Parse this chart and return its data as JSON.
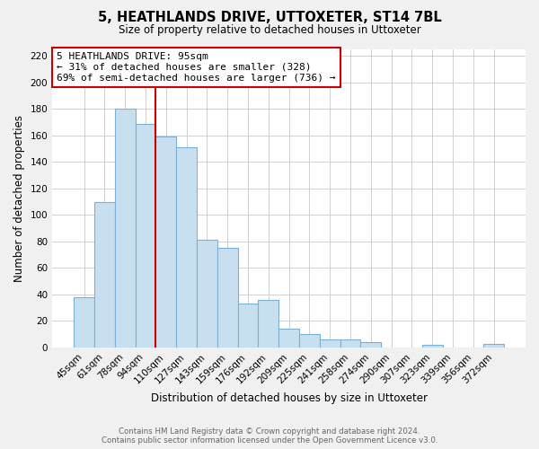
{
  "title": "5, HEATHLANDS DRIVE, UTTOXETER, ST14 7BL",
  "subtitle": "Size of property relative to detached houses in Uttoxeter",
  "xlabel": "Distribution of detached houses by size in Uttoxeter",
  "ylabel": "Number of detached properties",
  "categories": [
    "45sqm",
    "61sqm",
    "78sqm",
    "94sqm",
    "110sqm",
    "127sqm",
    "143sqm",
    "159sqm",
    "176sqm",
    "192sqm",
    "209sqm",
    "225sqm",
    "241sqm",
    "258sqm",
    "274sqm",
    "290sqm",
    "307sqm",
    "323sqm",
    "339sqm",
    "356sqm",
    "372sqm"
  ],
  "values": [
    38,
    110,
    180,
    169,
    159,
    151,
    81,
    75,
    33,
    36,
    14,
    10,
    6,
    6,
    4,
    0,
    0,
    2,
    0,
    0,
    3
  ],
  "bar_color": "#c8dff0",
  "bar_edge_color": "#7ab0d4",
  "property_line_index": 3,
  "property_line_color": "#cc0000",
  "annotation_line1": "5 HEATHLANDS DRIVE: 95sqm",
  "annotation_line2": "← 31% of detached houses are smaller (328)",
  "annotation_line3": "69% of semi-detached houses are larger (736) →",
  "annotation_box_color": "#ffffff",
  "annotation_box_edge": "#cc0000",
  "ylim": [
    0,
    225
  ],
  "yticks": [
    0,
    20,
    40,
    60,
    80,
    100,
    120,
    140,
    160,
    180,
    200,
    220
  ],
  "footer_line1": "Contains HM Land Registry data © Crown copyright and database right 2024.",
  "footer_line2": "Contains public sector information licensed under the Open Government Licence v3.0.",
  "bg_color": "#f0f0f0",
  "plot_bg_color": "#ffffff",
  "grid_color": "#d0d0d0"
}
